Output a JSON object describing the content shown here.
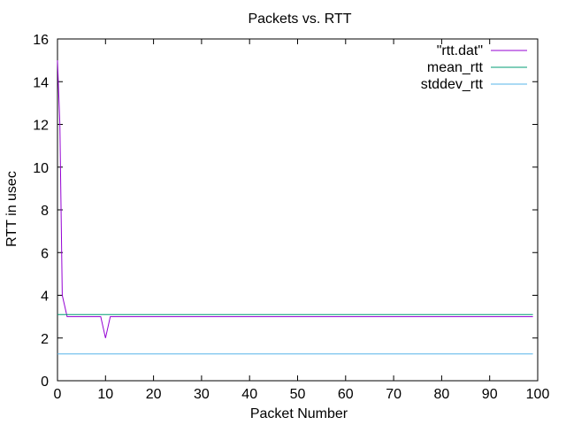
{
  "chart_data": {
    "type": "line",
    "title": "Packets vs. RTT",
    "xlabel": "Packet Number",
    "ylabel": "RTT in usec",
    "xlim": [
      0,
      100
    ],
    "ylim": [
      0,
      16
    ],
    "x_ticks": [
      0,
      10,
      20,
      30,
      40,
      50,
      60,
      70,
      80,
      90,
      100
    ],
    "y_ticks": [
      0,
      2,
      4,
      6,
      8,
      10,
      12,
      14,
      16
    ],
    "grid": false,
    "legend_position": "top-right",
    "series": [
      {
        "name": "\"rtt.dat\"",
        "color": "#9400d3",
        "x": [
          0,
          0.5,
          1,
          2,
          3,
          9,
          10,
          11,
          20,
          30,
          40,
          50,
          60,
          70,
          80,
          90,
          99
        ],
        "y": [
          15,
          12,
          4,
          3,
          3,
          3,
          2,
          3,
          3,
          3,
          3,
          3,
          3,
          3,
          3,
          3,
          3
        ]
      },
      {
        "name": "mean_rtt",
        "color": "#009e73",
        "x": [
          0,
          99
        ],
        "y": [
          3.1,
          3.1
        ]
      },
      {
        "name": "stddev_rtt",
        "color": "#56b4e9",
        "x": [
          0,
          99
        ],
        "y": [
          1.25,
          1.25
        ]
      }
    ]
  }
}
